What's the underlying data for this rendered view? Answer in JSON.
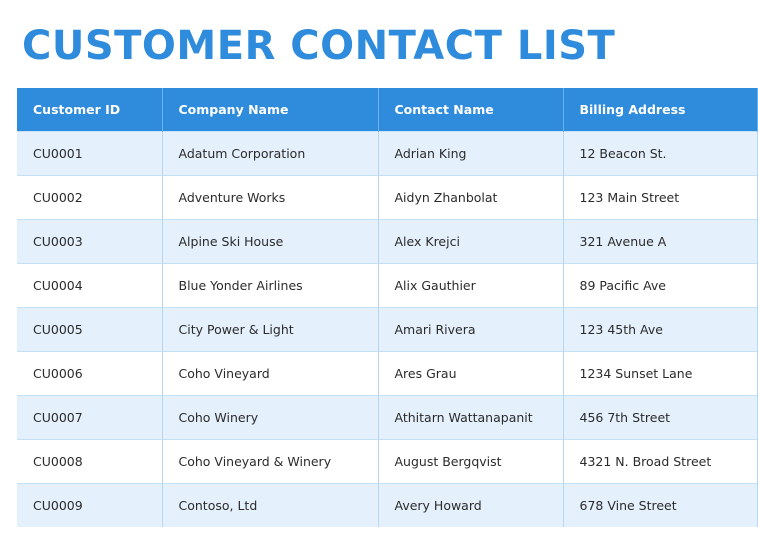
{
  "title": "CUSTOMER CONTACT LIST",
  "colors": {
    "accent": "#2f8bdb",
    "row_alt": "#e4f0fb",
    "row_plain": "#ffffff"
  },
  "table": {
    "headers": [
      "Customer ID",
      "Company Name",
      "Contact Name",
      "Billing Address"
    ],
    "rows": [
      [
        "CU0001",
        "Adatum Corporation",
        "Adrian King",
        "12 Beacon St."
      ],
      [
        "CU0002",
        "Adventure Works",
        "Aidyn Zhanbolat",
        "123 Main Street"
      ],
      [
        "CU0003",
        "Alpine Ski House",
        "Alex Krejci",
        "321 Avenue A"
      ],
      [
        "CU0004",
        "Blue Yonder Airlines",
        "Alix Gauthier",
        "89 Pacific Ave"
      ],
      [
        "CU0005",
        "City Power & Light",
        "Amari Rivera",
        "123 45th Ave"
      ],
      [
        "CU0006",
        "Coho Vineyard",
        "Ares Grau",
        "1234 Sunset Lane"
      ],
      [
        "CU0007",
        "Coho Winery",
        "Athitarn Wattanapanit",
        "456 7th Street"
      ],
      [
        "CU0008",
        "Coho Vineyard & Winery",
        "August Bergqvist",
        "4321 N. Broad Street"
      ],
      [
        "CU0009",
        "Contoso, Ltd",
        "Avery Howard",
        "678 Vine Street"
      ]
    ]
  }
}
